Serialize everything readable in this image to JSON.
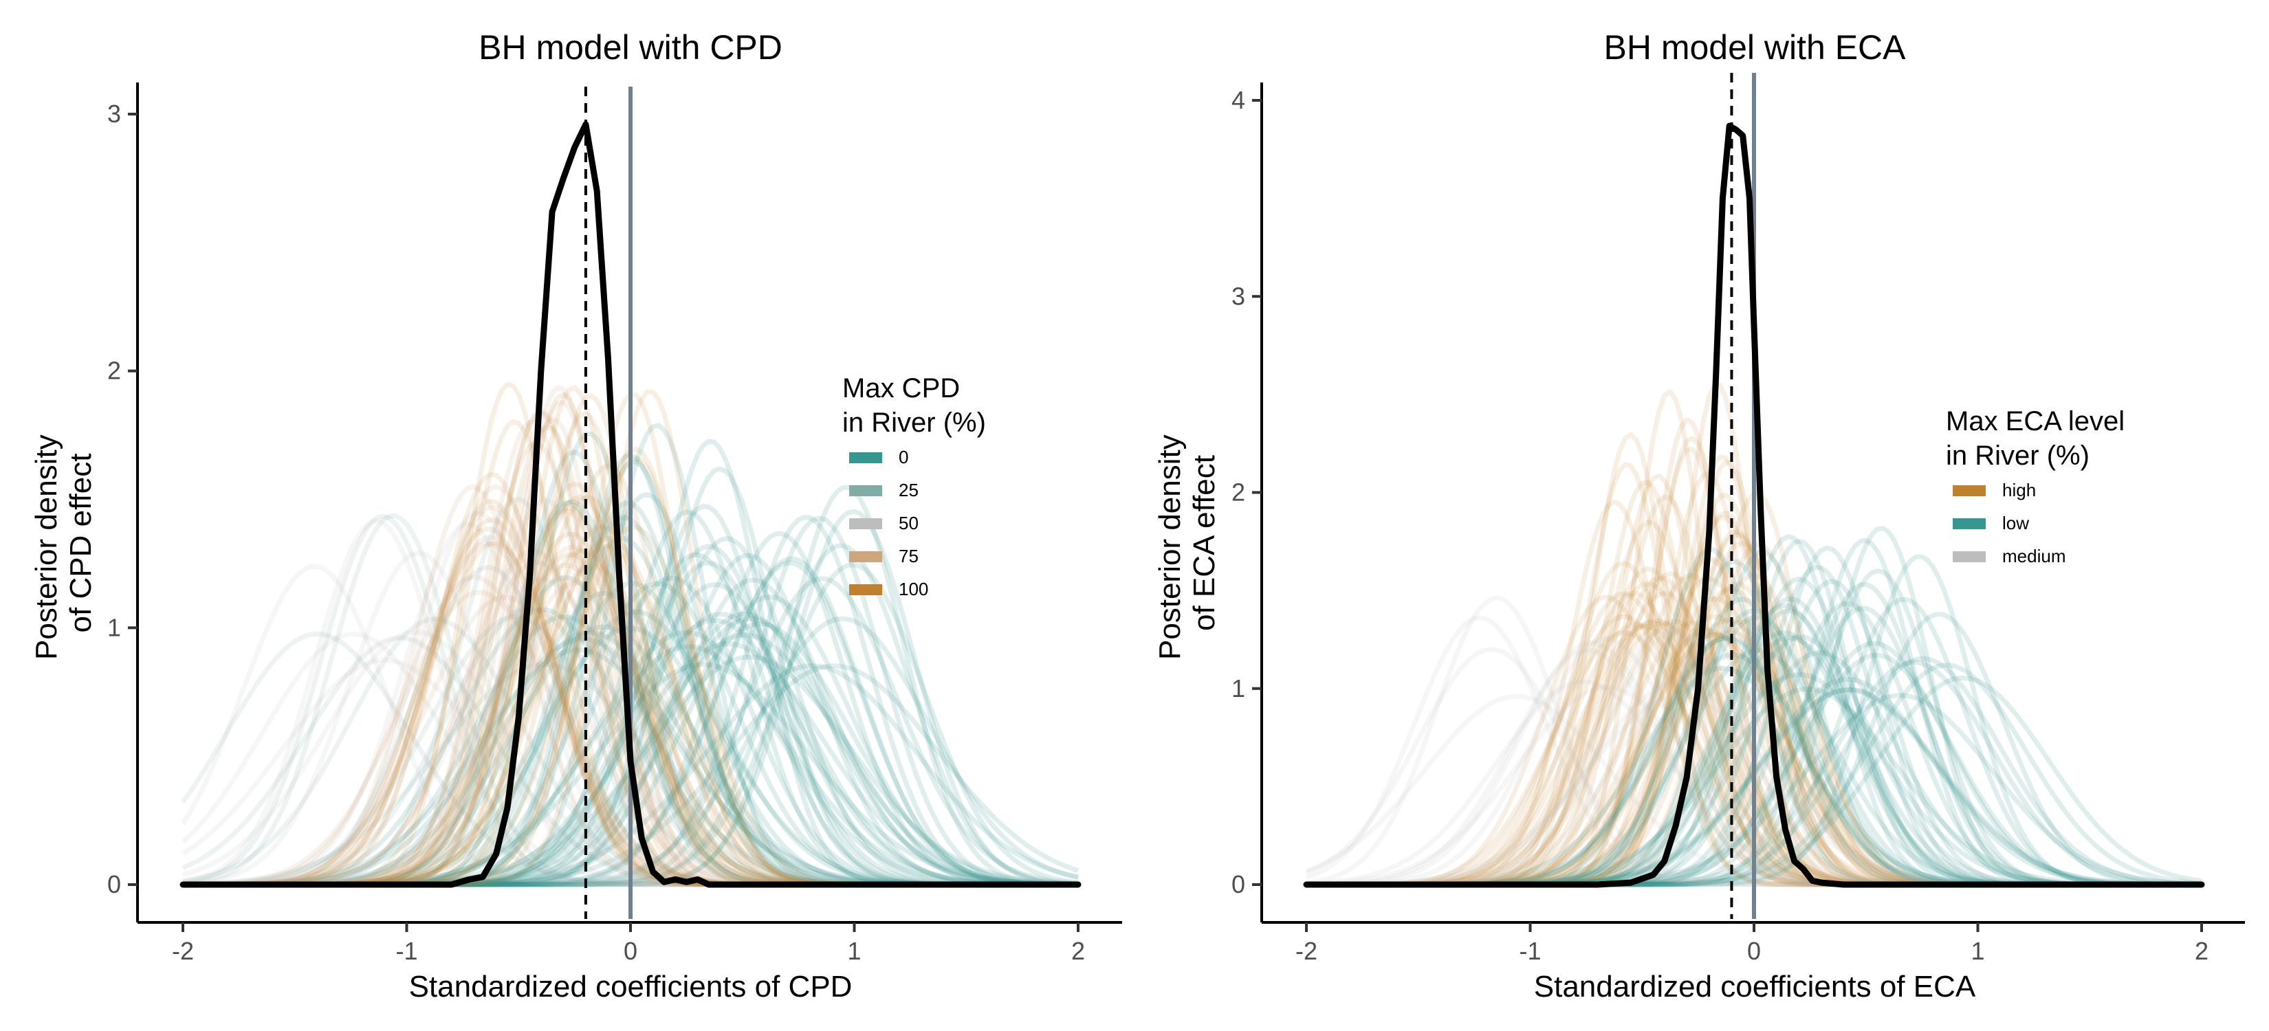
{
  "chart_data": [
    {
      "type": "line",
      "title": "BH model with CPD",
      "xlabel": "Standardized coefficients of CPD",
      "ylabel": "Posterior density\nof CPD effect",
      "xlim": [
        -2,
        2
      ],
      "ylim": [
        0,
        3
      ],
      "xticks": [
        -2,
        -1,
        0,
        1,
        2
      ],
      "yticks": [
        0,
        1,
        2,
        3
      ],
      "grid": false,
      "legend": {
        "title": "Max CPD\nin River (%)",
        "position": "right",
        "entries": [
          {
            "label": "0",
            "color": "#35978f"
          },
          {
            "label": "25",
            "color": "#80aca6"
          },
          {
            "label": "50",
            "color": "#bdbdbd"
          },
          {
            "label": "75",
            "color": "#cda67e"
          },
          {
            "label": "100",
            "color": "#bf812d"
          }
        ]
      },
      "reference_lines": [
        {
          "x": -0.2,
          "style": "dashed",
          "color": "#000000"
        },
        {
          "x": 0,
          "style": "solid",
          "color": "#708090"
        }
      ],
      "main_density": {
        "color": "#000000",
        "x": [
          -2,
          -0.8,
          -0.72,
          -0.66,
          -0.6,
          -0.55,
          -0.5,
          -0.45,
          -0.4,
          -0.35,
          -0.3,
          -0.25,
          -0.2,
          -0.15,
          -0.1,
          -0.05,
          0,
          0.05,
          0.1,
          0.15,
          0.2,
          0.25,
          0.3,
          0.35,
          0.4,
          2
        ],
        "y": [
          0,
          0,
          0.02,
          0.03,
          0.12,
          0.3,
          0.65,
          1.2,
          2.0,
          2.62,
          2.75,
          2.87,
          2.96,
          2.7,
          2.05,
          1.2,
          0.48,
          0.18,
          0.05,
          0.01,
          0.02,
          0.01,
          0.02,
          0.0,
          0,
          0
        ]
      },
      "posterior_groups": [
        {
          "name": "0",
          "color": "#35978f",
          "count": 60,
          "mean_range": [
            -0.4,
            1.0
          ],
          "sd_range": [
            0.22,
            0.45
          ],
          "opacity": 0.16
        },
        {
          "name": "25",
          "color": "#80aca6",
          "count": 10,
          "mean_range": [
            -1.6,
            -0.4
          ],
          "sd_range": [
            0.25,
            0.5
          ],
          "opacity": 0.14
        },
        {
          "name": "50",
          "color": "#bdbdbd",
          "count": 10,
          "mean_range": [
            -1.4,
            -0.3
          ],
          "sd_range": [
            0.25,
            0.45
          ],
          "opacity": 0.14
        },
        {
          "name": "75",
          "color": "#cda67e",
          "count": 20,
          "mean_range": [
            -0.7,
            -0.05
          ],
          "sd_range": [
            0.2,
            0.35
          ],
          "opacity": 0.14
        },
        {
          "name": "100",
          "color": "#bf812d",
          "count": 30,
          "mean_range": [
            -0.6,
            0.1
          ],
          "sd_range": [
            0.2,
            0.32
          ],
          "opacity": 0.13
        }
      ]
    },
    {
      "type": "line",
      "title": "BH model with ECA",
      "xlabel": "Standardized coefficients of ECA",
      "ylabel": "Posterior density\nof ECA effect",
      "xlim": [
        -2,
        2
      ],
      "ylim": [
        0,
        4
      ],
      "xticks": [
        -2,
        -1,
        0,
        1,
        2
      ],
      "yticks": [
        0,
        1,
        2,
        3,
        4
      ],
      "grid": false,
      "legend": {
        "title": "Max ECA level\nin River (%)",
        "position": "right",
        "entries": [
          {
            "label": "high",
            "color": "#bf812d"
          },
          {
            "label": "low",
            "color": "#35978f"
          },
          {
            "label": "medium",
            "color": "#bdbdbd"
          }
        ]
      },
      "reference_lines": [
        {
          "x": -0.1,
          "style": "dashed",
          "color": "#000000"
        },
        {
          "x": 0,
          "style": "solid",
          "color": "#708090"
        }
      ],
      "main_density": {
        "color": "#000000",
        "x": [
          -2,
          -0.7,
          -0.55,
          -0.45,
          -0.4,
          -0.35,
          -0.3,
          -0.25,
          -0.2,
          -0.17,
          -0.14,
          -0.11,
          -0.08,
          -0.05,
          -0.02,
          0,
          0.03,
          0.06,
          0.1,
          0.14,
          0.18,
          0.22,
          0.26,
          0.3,
          0.4,
          2
        ],
        "y": [
          0,
          0,
          0.01,
          0.05,
          0.12,
          0.3,
          0.55,
          1.0,
          1.8,
          2.6,
          3.5,
          3.87,
          3.85,
          3.82,
          3.5,
          2.85,
          1.9,
          1.1,
          0.55,
          0.28,
          0.12,
          0.08,
          0.02,
          0.01,
          0,
          0
        ]
      },
      "posterior_groups": [
        {
          "name": "high",
          "color": "#bf812d",
          "count": 55,
          "mean_range": [
            -0.7,
            0.0
          ],
          "sd_range": [
            0.15,
            0.32
          ],
          "opacity": 0.13
        },
        {
          "name": "low",
          "color": "#35978f",
          "count": 45,
          "mean_range": [
            -0.2,
            0.9
          ],
          "sd_range": [
            0.22,
            0.4
          ],
          "opacity": 0.16
        },
        {
          "name": "medium",
          "color": "#bdbdbd",
          "count": 14,
          "mean_range": [
            -1.4,
            -0.2
          ],
          "sd_range": [
            0.25,
            0.45
          ],
          "opacity": 0.14
        }
      ]
    }
  ]
}
